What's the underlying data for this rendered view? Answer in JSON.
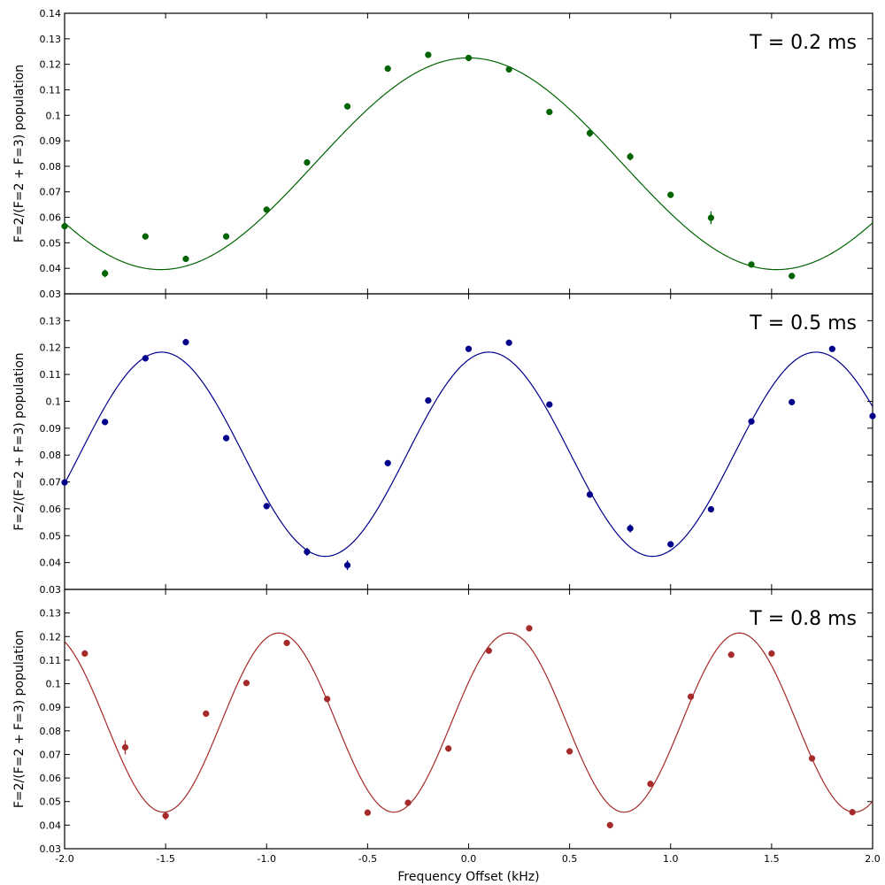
{
  "chart_data": [
    {
      "type": "scatter",
      "title": "T = 0.2 ms",
      "xlabel": "",
      "ylabel": "F=2/(F=2 + F=3) population",
      "xlim": [
        -2.0,
        2.0
      ],
      "ylim": [
        0.03,
        0.14
      ],
      "yticks": [
        "0.03",
        "0.04",
        "0.05",
        "0.06",
        "0.07",
        "0.08",
        "0.09",
        "0.1",
        "0.11",
        "0.12",
        "0.13",
        "0.14"
      ],
      "grid": false,
      "color": "#006400",
      "fit": {
        "type": "cosine",
        "offset": 0.081,
        "amplitude": 0.0415,
        "period_khz": 3.05,
        "center_khz": 0.0
      },
      "series": [
        {
          "x": [
            -2.0,
            -1.8,
            -1.6,
            -1.4,
            -1.2,
            -1.0,
            -0.8,
            -0.6,
            -0.4,
            -0.2,
            0.0,
            0.2,
            0.4,
            0.6,
            0.8,
            1.0,
            1.2,
            1.4,
            1.6
          ],
          "y": [
            0.0565,
            0.038,
            0.0525,
            0.0437,
            0.0525,
            0.063,
            0.0815,
            0.1035,
            0.1183,
            0.1237,
            0.1225,
            0.118,
            0.1013,
            0.093,
            0.0838,
            0.0688,
            0.0598,
            0.0415,
            0.037
          ],
          "yerr": [
            0.0005,
            0.0015,
            0.001,
            0.0005,
            0.0005,
            0.0005,
            0.0012,
            0.0005,
            0.0005,
            0.0005,
            0.0005,
            0.0005,
            0.001,
            0.0015,
            0.0015,
            0.0008,
            0.0025,
            0.0005,
            0.0005
          ]
        }
      ]
    },
    {
      "type": "scatter",
      "title": "T = 0.5 ms",
      "xlabel": "",
      "ylabel": "F=2/(F=2 + F=3) population",
      "xlim": [
        -2.0,
        2.0
      ],
      "ylim": [
        0.03,
        0.14
      ],
      "yticks": [
        "0.03",
        "0.04",
        "0.05",
        "0.06",
        "0.07",
        "0.08",
        "0.09",
        "0.1",
        "0.11",
        "0.12",
        "0.13"
      ],
      "grid": false,
      "color": "#00008b",
      "fit": {
        "type": "cosine",
        "offset": 0.0803,
        "amplitude": 0.038,
        "period_khz": 1.62,
        "center_khz": 0.1
      },
      "series": [
        {
          "x": [
            -2.0,
            -1.8,
            -1.6,
            -1.4,
            -1.2,
            -1.0,
            -0.8,
            -0.6,
            -0.4,
            -0.2,
            0.0,
            0.2,
            0.4,
            0.6,
            0.8,
            1.0,
            1.2,
            1.4,
            1.6,
            1.8,
            2.0
          ],
          "y": [
            0.0698,
            0.0923,
            0.116,
            0.122,
            0.0863,
            0.061,
            0.044,
            0.039,
            0.077,
            0.1003,
            0.1195,
            0.1218,
            0.0988,
            0.0653,
            0.0527,
            0.0468,
            0.0598,
            0.0925,
            0.0997,
            0.1195,
            0.0945
          ],
          "yerr": [
            0.0005,
            0.0005,
            0.0012,
            0.0005,
            0.0005,
            0.0008,
            0.0015,
            0.0018,
            0.0005,
            0.0005,
            0.0005,
            0.0005,
            0.001,
            0.0012,
            0.0015,
            0.0005,
            0.0005,
            0.0005,
            0.0005,
            0.0005,
            0.0005
          ]
        }
      ]
    },
    {
      "type": "scatter",
      "title": "T = 0.8 ms",
      "xlabel": "Frequency Offset (kHz)",
      "ylabel": "F=2/(F=2 + F=3) population",
      "xlim": [
        -2.0,
        2.0
      ],
      "ylim": [
        0.03,
        0.14
      ],
      "xticks": [
        "-2.0",
        "-1.5",
        "-1.0",
        "-0.5",
        "0.0",
        "0.5",
        "1.0",
        "1.5",
        "2.0"
      ],
      "yticks": [
        "0.03",
        "0.04",
        "0.05",
        "0.06",
        "0.07",
        "0.08",
        "0.09",
        "0.1",
        "0.11",
        "0.12",
        "0.13"
      ],
      "grid": false,
      "color": "#a52a2a",
      "fit": {
        "type": "cosine",
        "offset": 0.0835,
        "amplitude": 0.038,
        "period_khz": 1.14,
        "center_khz": 0.2
      },
      "series": [
        {
          "x": [
            -1.9,
            -1.7,
            -1.5,
            -1.3,
            -1.1,
            -0.9,
            -0.7,
            -0.5,
            -0.3,
            -0.1,
            0.1,
            0.3,
            0.5,
            0.7,
            0.9,
            1.1,
            1.3,
            1.5,
            1.7,
            1.9
          ],
          "y": [
            0.1128,
            0.073,
            0.044,
            0.0873,
            0.1003,
            0.1173,
            0.0935,
            0.0453,
            0.0495,
            0.0725,
            0.114,
            0.1235,
            0.0713,
            0.04,
            0.0575,
            0.0945,
            0.1123,
            0.1128,
            0.0683,
            0.0455
          ],
          "yerr": [
            0.001,
            0.003,
            0.0018,
            0.0005,
            0.0005,
            0.0005,
            0.0005,
            0.0005,
            0.0005,
            0.0005,
            0.0005,
            0.0005,
            0.0005,
            0.0012,
            0.0005,
            0.0005,
            0.0008,
            0.0005,
            0.0005,
            0.0005
          ]
        }
      ]
    }
  ]
}
